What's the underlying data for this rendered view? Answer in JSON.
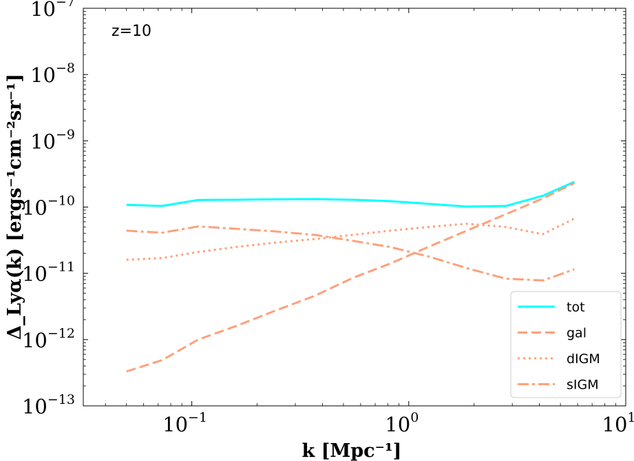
{
  "chart_data": {
    "type": "line",
    "xscale": "log",
    "yscale": "log",
    "xlim": [
      0.03162,
      10
    ],
    "ylim": [
      1e-13,
      1e-07
    ],
    "xlabel": "k [Mpc⁻¹]",
    "ylabel": "Δ_Lyα(k) [ergs⁻¹cm⁻²sr⁻¹]",
    "annotation": "z=10",
    "x_ticks": [
      {
        "base": "10",
        "exp": "−1"
      },
      {
        "base": "10",
        "exp": "0"
      },
      {
        "base": "10",
        "exp": "1"
      }
    ],
    "y_ticks": [
      {
        "base": "10",
        "exp": "−13"
      },
      {
        "base": "10",
        "exp": "−12"
      },
      {
        "base": "10",
        "exp": "−11"
      },
      {
        "base": "10",
        "exp": "−10"
      },
      {
        "base": "10",
        "exp": "−9"
      },
      {
        "base": "10",
        "exp": "−8"
      },
      {
        "base": "10",
        "exp": "−7"
      }
    ],
    "x": [
      0.05,
      0.073,
      0.107,
      0.16,
      0.24,
      0.37,
      0.55,
      0.82,
      1.23,
      1.85,
      2.8,
      4.15,
      5.8
    ],
    "series": [
      {
        "name": "tot",
        "color": "#00ffff",
        "dash": "solid",
        "values": [
          1.08e-10,
          1.04e-10,
          1.28e-10,
          1.29e-10,
          1.31e-10,
          1.32e-10,
          1.29e-10,
          1.23e-10,
          1.12e-10,
          1.02e-10,
          1.04e-10,
          1.48e-10,
          2.4e-10
        ]
      },
      {
        "name": "gal",
        "color": "#ffa07a",
        "dash": "dashed",
        "values": [
          3.3e-13,
          4.9e-13,
          1e-12,
          1.6e-12,
          2.7e-12,
          4.6e-12,
          8.5e-12,
          1.4e-11,
          2.5e-11,
          4.4e-11,
          7.8e-11,
          1.35e-10,
          2.3e-10
        ]
      },
      {
        "name": "dIGM",
        "color": "#ffa07a",
        "dash": "dotted",
        "values": [
          1.6e-11,
          1.7e-11,
          2.1e-11,
          2.5e-11,
          2.9e-11,
          3.3e-11,
          3.8e-11,
          4.4e-11,
          5e-11,
          5.6e-11,
          5e-11,
          3.9e-11,
          6.7e-11
        ]
      },
      {
        "name": "sIGM",
        "color": "#ffa07a",
        "dash": "dashdot",
        "values": [
          4.4e-11,
          4.1e-11,
          5.1e-11,
          4.7e-11,
          4.3e-11,
          3.8e-11,
          3.1e-11,
          2.5e-11,
          1.8e-11,
          1.2e-11,
          8.3e-12,
          7.8e-12,
          1.15e-11
        ]
      }
    ],
    "legend_position": "lower-right"
  }
}
